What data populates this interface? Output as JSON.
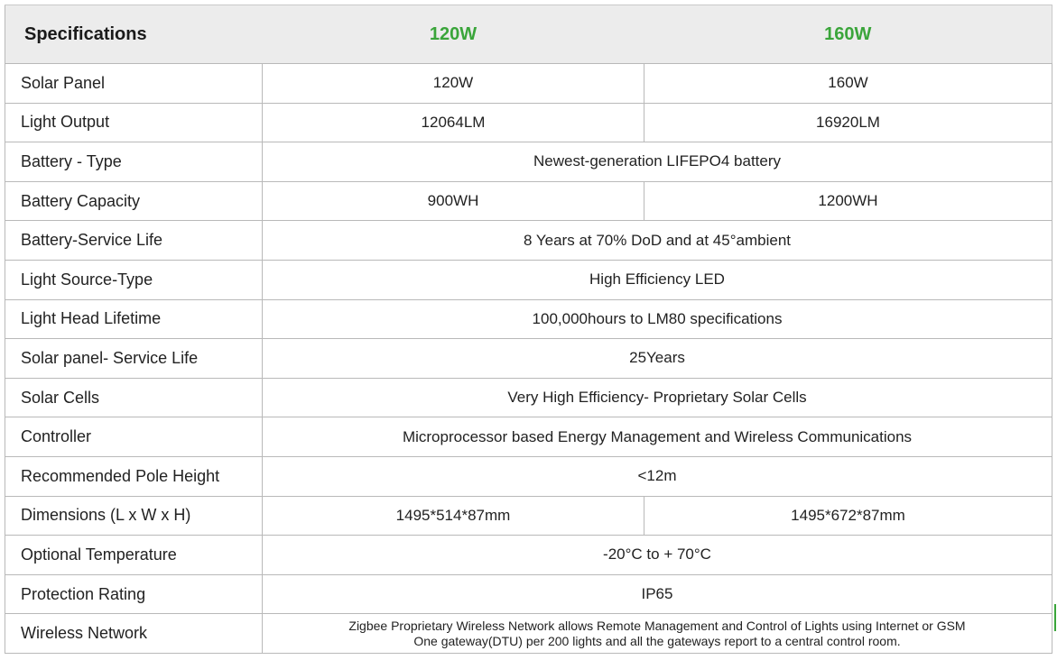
{
  "header": {
    "label": "Specifications",
    "models": [
      "120W",
      "160W"
    ]
  },
  "rows": [
    {
      "label": "Solar Panel",
      "values": [
        "120W",
        "160W"
      ]
    },
    {
      "label": "Light Output",
      "values": [
        "12064LM",
        "16920LM"
      ]
    },
    {
      "label": "Battery - Type",
      "value": "Newest-generation LIFEPO4 battery"
    },
    {
      "label": "Battery Capacity",
      "values": [
        "900WH",
        "1200WH"
      ]
    },
    {
      "label": "Battery-Service Life",
      "value": "8 Years at 70% DoD and at 45°ambient"
    },
    {
      "label": "Light Source-Type",
      "value": "High Efficiency LED"
    },
    {
      "label": "Light Head Lifetime",
      "value": "100,000hours to LM80 specifications"
    },
    {
      "label": "Solar panel- Service Life",
      "value": "25Years"
    },
    {
      "label": "Solar Cells",
      "value": "Very High Efficiency- Proprietary Solar Cells"
    },
    {
      "label": "Controller",
      "value": "Microprocessor based Energy Management and Wireless Communications"
    },
    {
      "label": "Recommended Pole Height",
      "value": "<12m"
    },
    {
      "label": "Dimensions (L x W x H)",
      "values": [
        "1495*514*87mm",
        "1495*672*87mm"
      ]
    },
    {
      "label": "Optional Temperature",
      "value": "-20°C to + 70°C"
    },
    {
      "label": "Protection Rating",
      "value": "IP65"
    },
    {
      "label": "Wireless Network",
      "lines": [
        "Zigbee Proprietary Wireless Network allows Remote Management and Control of Lights using Internet or GSM",
        "One gateway(DTU) per 200 lights and all the gateways report to a central control room."
      ]
    }
  ],
  "colors": {
    "accent_green": "#3aa53a",
    "header_bg": "#ececec",
    "border": "#b9b9b9"
  }
}
